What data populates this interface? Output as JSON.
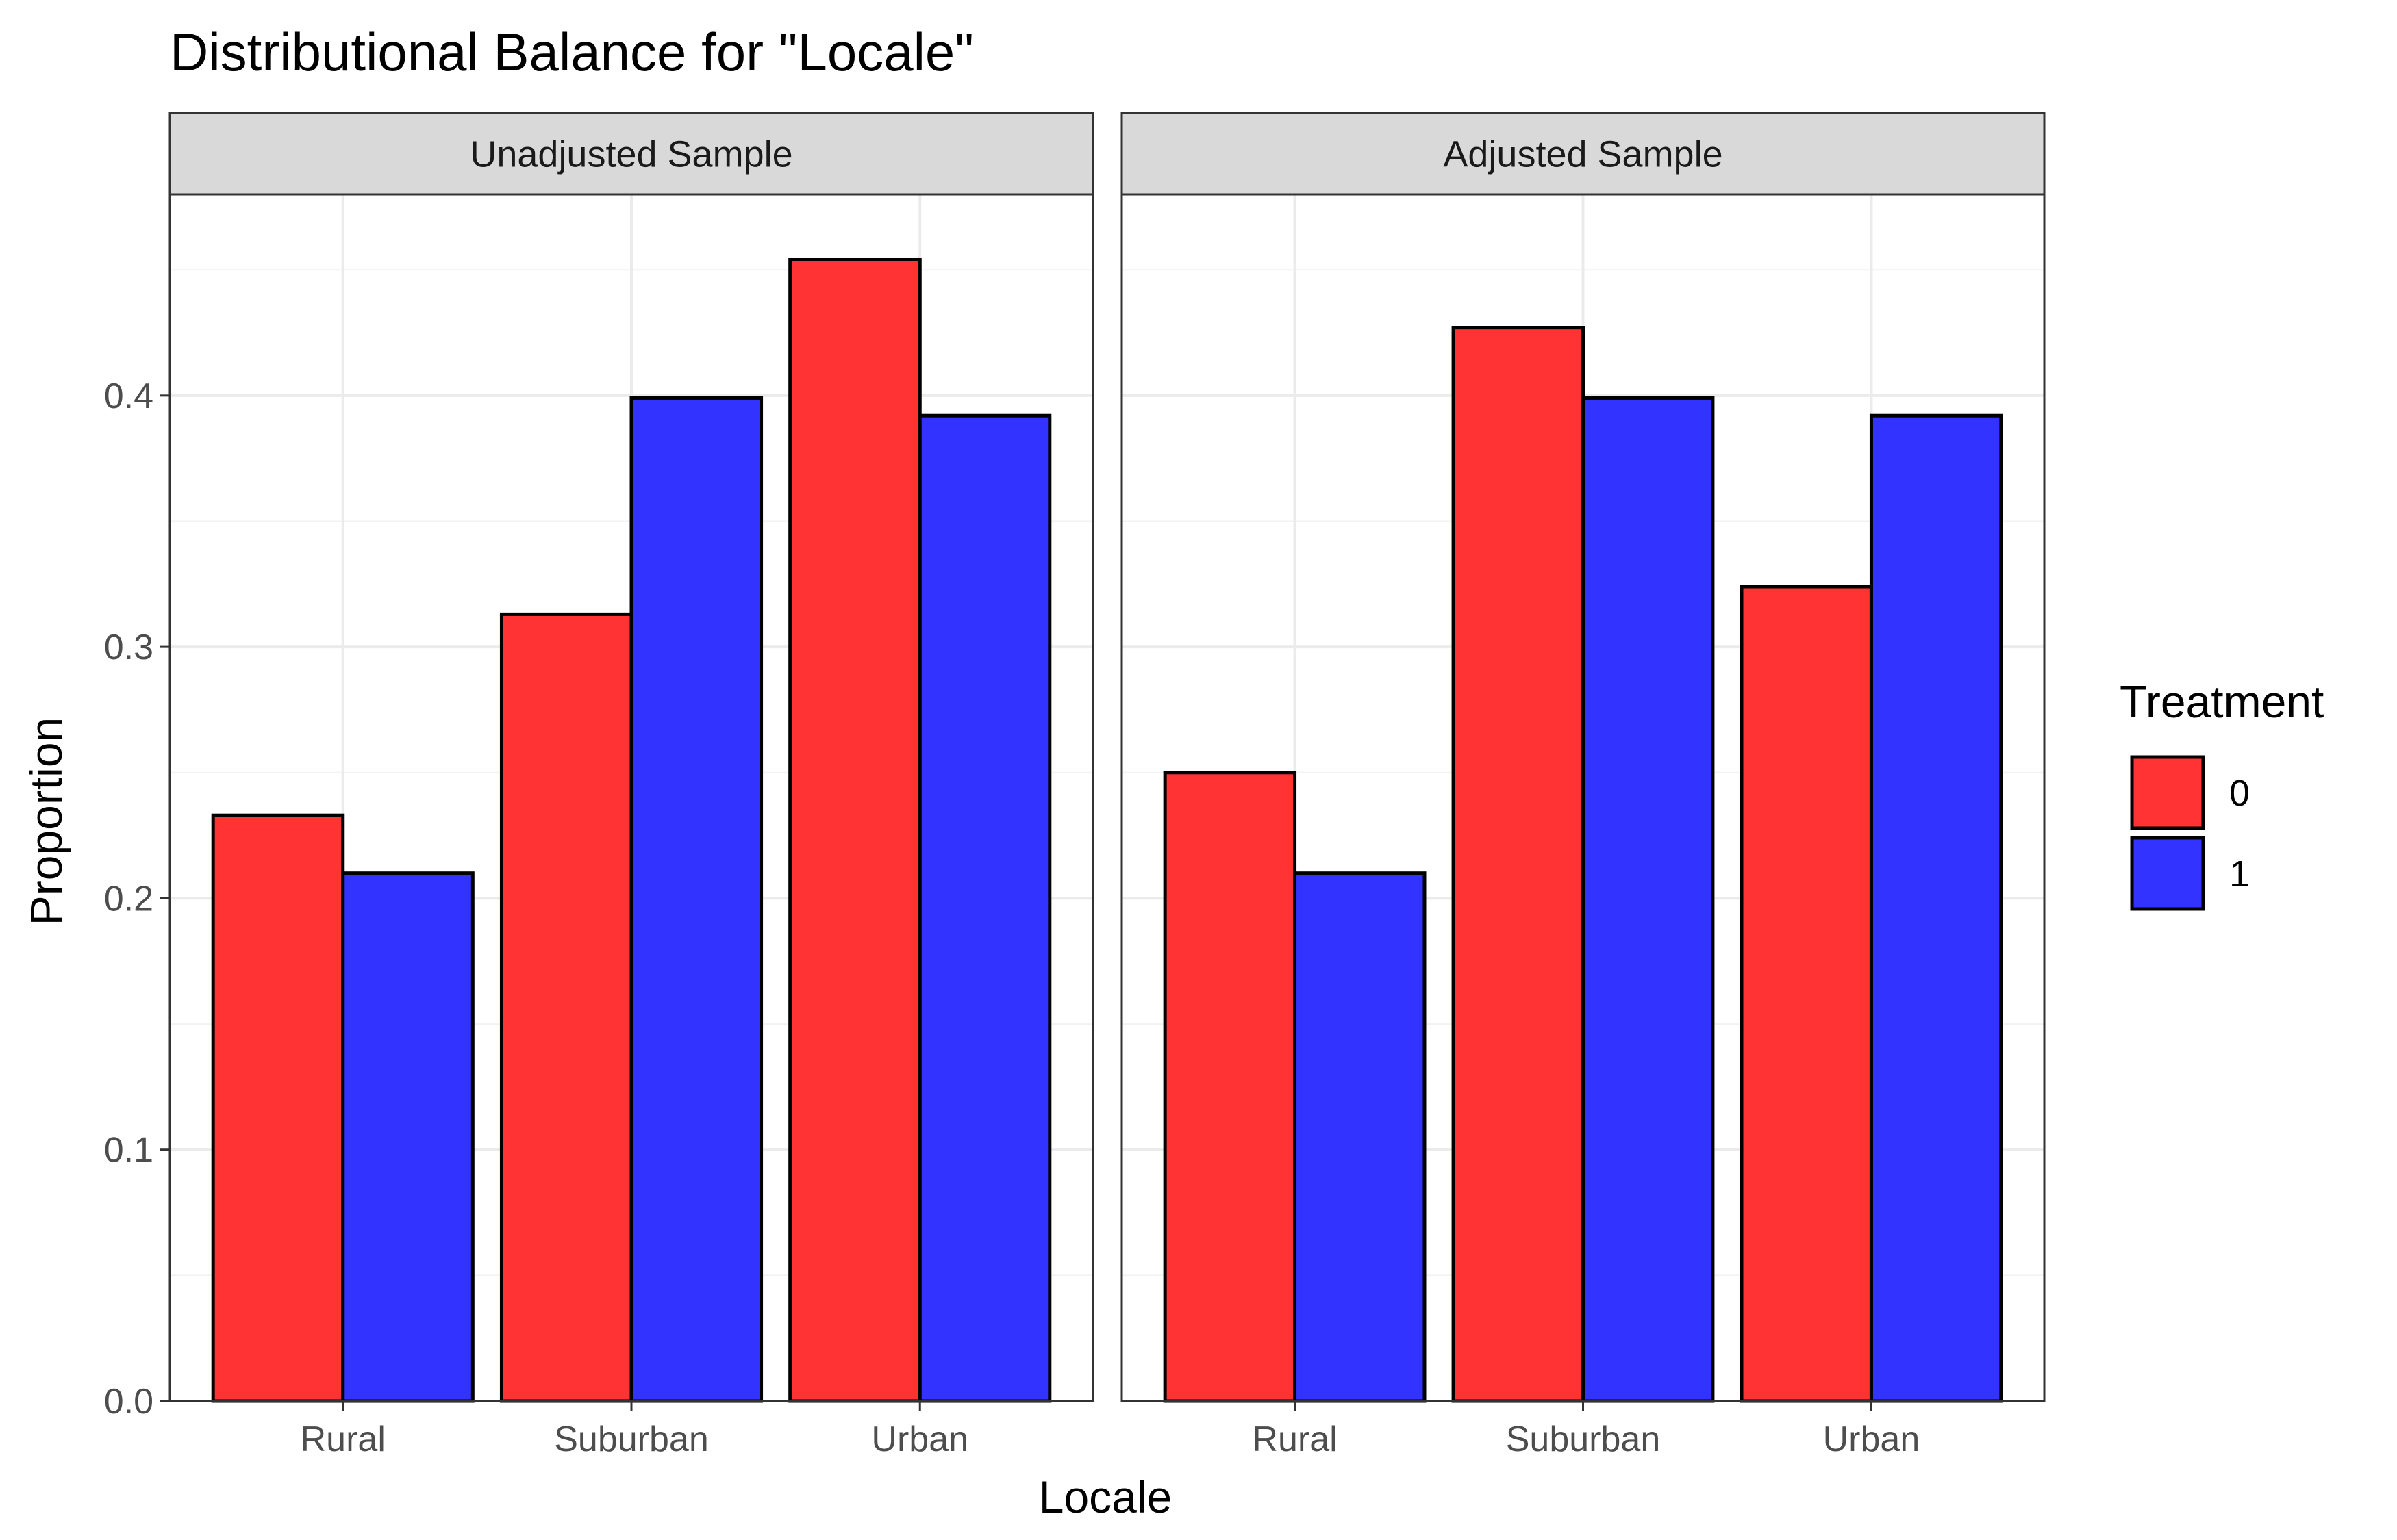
{
  "chart_data": {
    "type": "bar",
    "title": "Distributional Balance for \"Locale\"",
    "xlabel": "Locale",
    "ylabel": "Proportion",
    "categories": [
      "Rural",
      "Suburban",
      "Urban"
    ],
    "ylim": [
      0,
      0.48
    ],
    "yticks": [
      0.0,
      0.1,
      0.2,
      0.3,
      0.4
    ],
    "ytick_labels": [
      "0.0",
      "0.1",
      "0.2",
      "0.3",
      "0.4"
    ],
    "grid": true,
    "legend": {
      "title": "Treatment",
      "placement": "right",
      "entries": [
        {
          "label": "0",
          "color": "#ff3333"
        },
        {
          "label": "1",
          "color": "#3333ff"
        }
      ]
    },
    "panels": [
      {
        "label": "Unadjusted Sample",
        "series": [
          {
            "name": "0",
            "color": "#ff3333",
            "values": [
              0.233,
              0.313,
              0.454
            ]
          },
          {
            "name": "1",
            "color": "#3333ff",
            "values": [
              0.21,
              0.399,
              0.392
            ]
          }
        ]
      },
      {
        "label": "Adjusted Sample",
        "series": [
          {
            "name": "0",
            "color": "#ff3333",
            "values": [
              0.25,
              0.427,
              0.324
            ]
          },
          {
            "name": "1",
            "color": "#3333ff",
            "values": [
              0.21,
              0.399,
              0.392
            ]
          }
        ]
      }
    ]
  }
}
